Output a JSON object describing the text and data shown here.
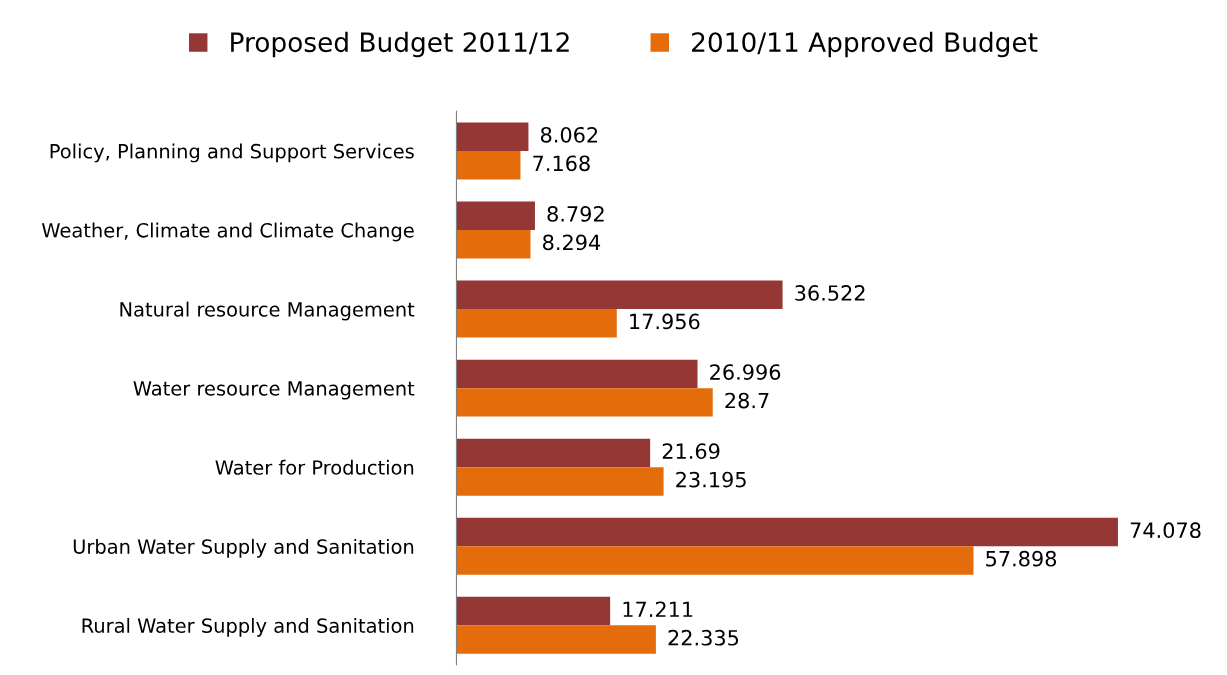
{
  "chart_data": {
    "type": "bar",
    "orientation": "horizontal",
    "data_labels": true,
    "legend": "top",
    "grid": false,
    "categories": [
      "Policy, Planning and Support Services",
      "Weather, Climate and Climate Change",
      "Natural resource Management",
      "Water resource Management",
      "Water for Production",
      "Urban Water Supply and Sanitation",
      "Rural Water Supply and Sanitation"
    ],
    "series": [
      {
        "name": "Proposed Budget 2011/12",
        "color": "#953735",
        "values": [
          8.062,
          8.792,
          36.522,
          26.996,
          21.69,
          74.078,
          17.211
        ]
      },
      {
        "name": "2010/11 Approved Budget",
        "color": "#e46c0a",
        "values": [
          7.168,
          8.294,
          17.956,
          28.7,
          23.195,
          57.898,
          22.335
        ]
      }
    ]
  }
}
